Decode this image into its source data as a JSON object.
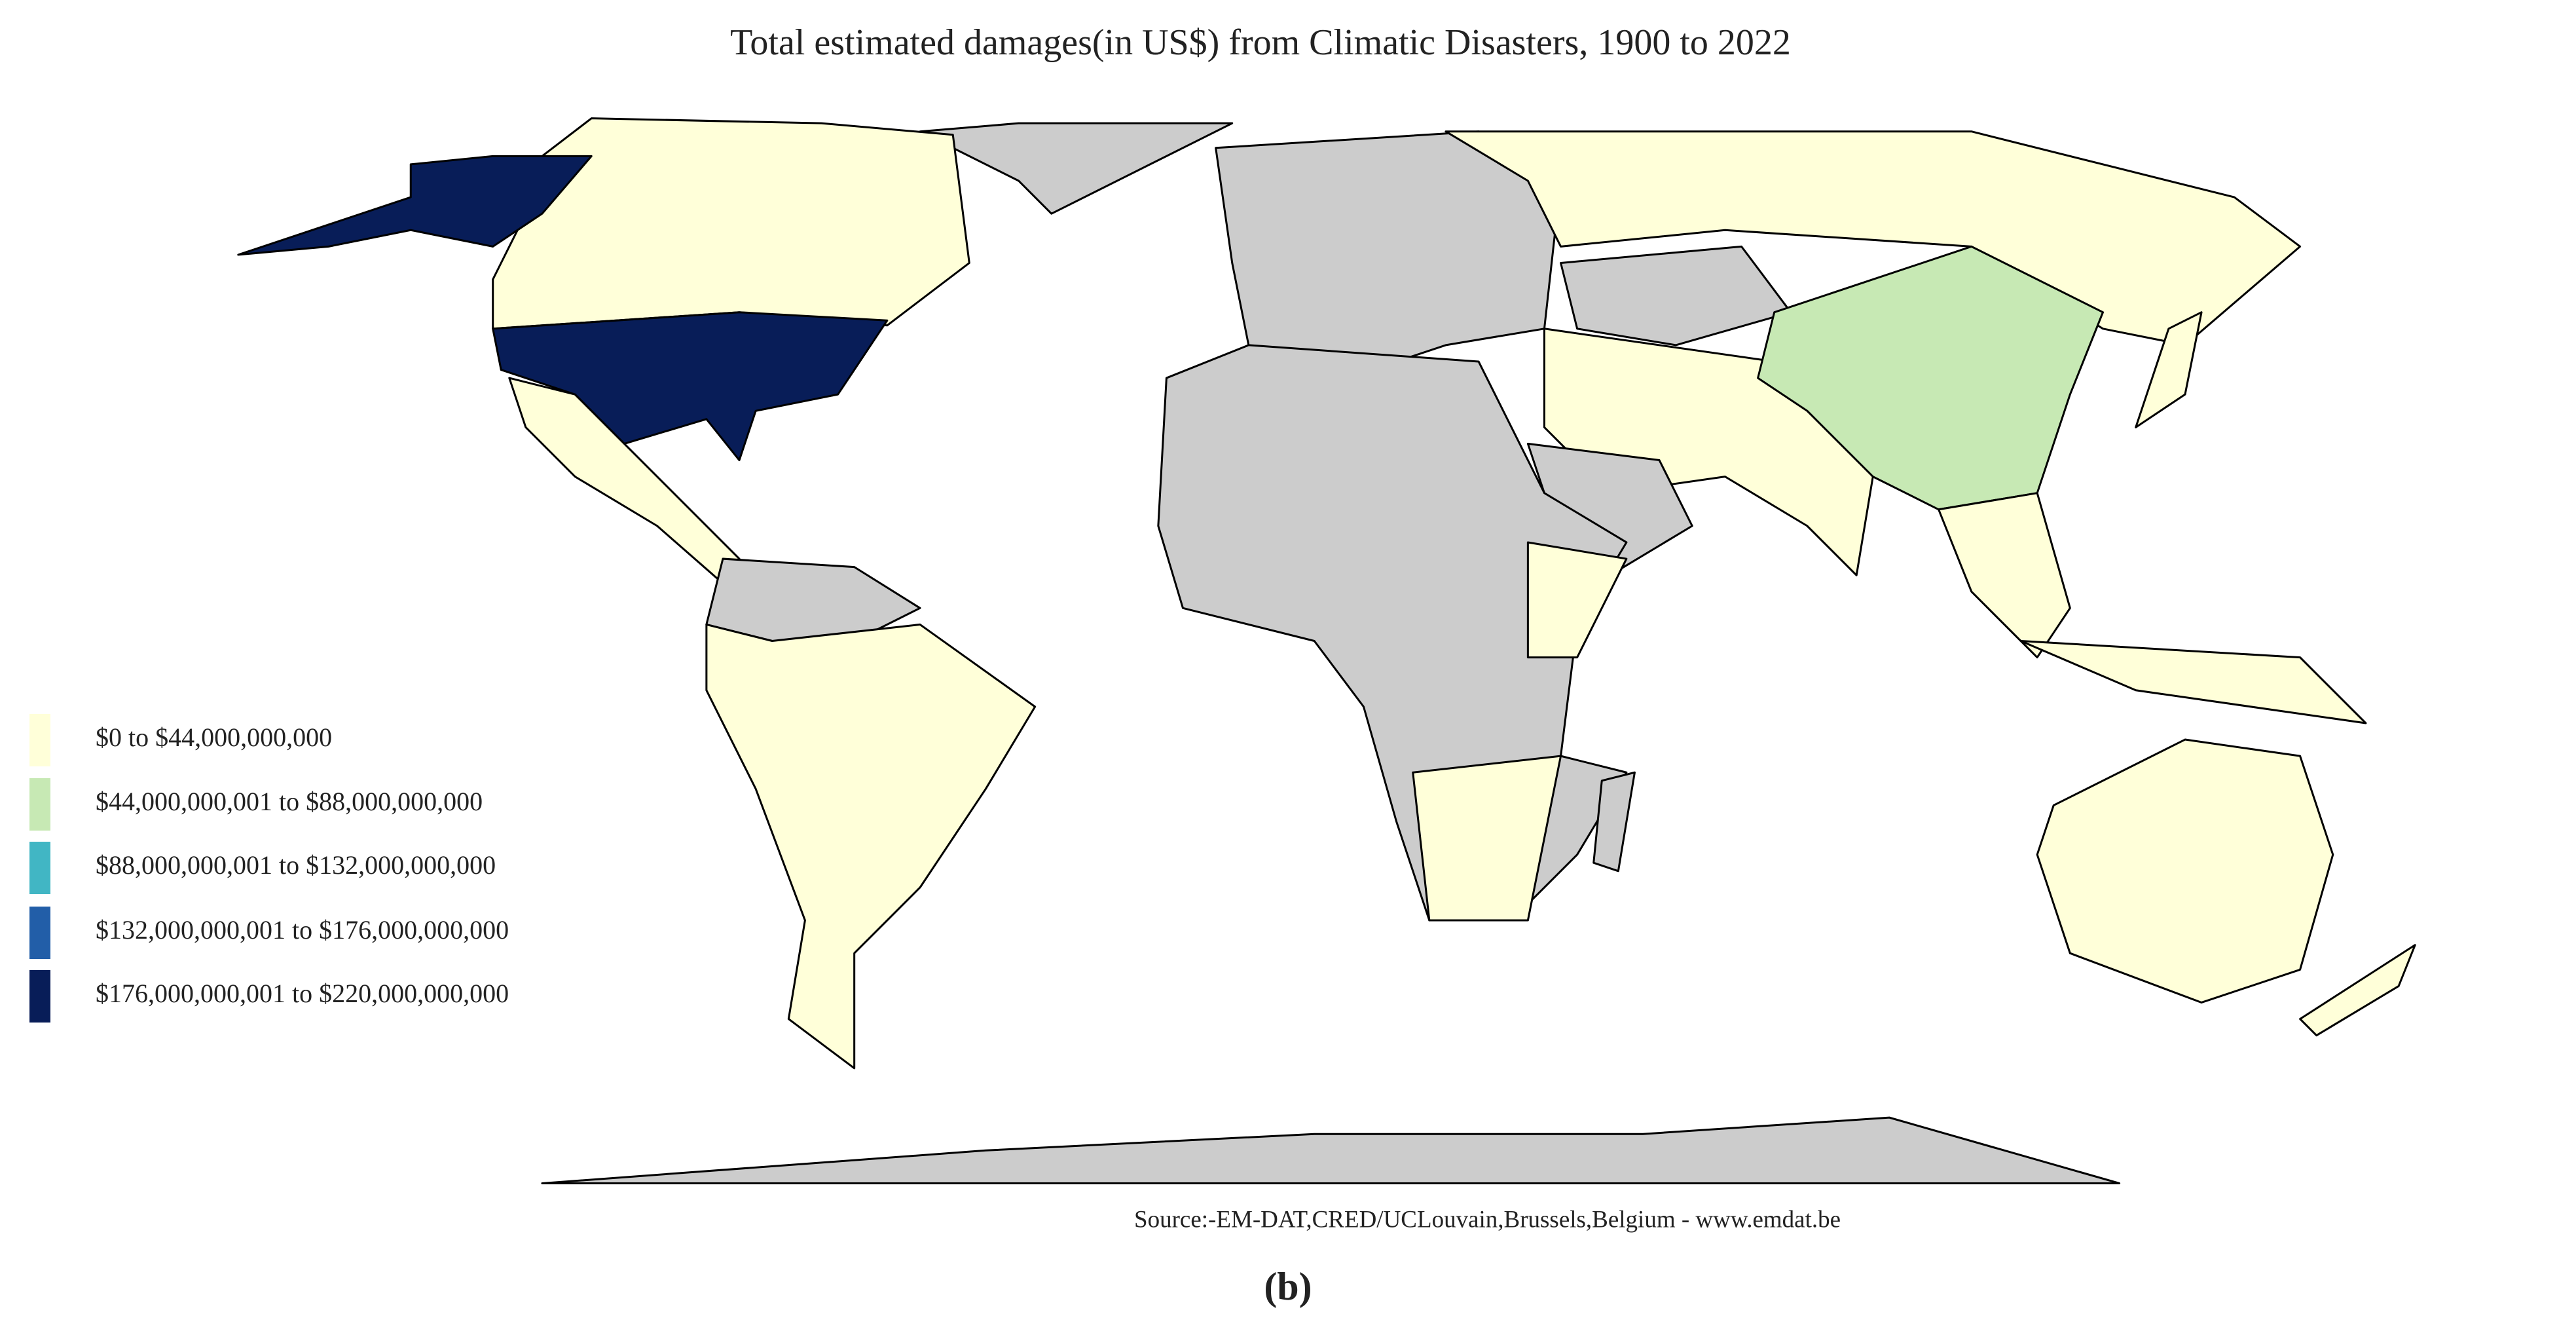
{
  "title": "Total estimated damages(in US$) from Climatic Disasters, 1900 to 2022",
  "legend": [
    {
      "label": "$0 to $44,000,000,000",
      "color": "#ffffd9"
    },
    {
      "label": "$44,000,000,001 to $88,000,000,000",
      "color": "#c7e9b4"
    },
    {
      "label": "$88,000,000,001 to $132,000,000,000",
      "color": "#41b6c4"
    },
    {
      "label": "$132,000,000,001 to $176,000,000,000",
      "color": "#225ea8"
    },
    {
      "label": "$176,000,000,001 to $220,000,000,000",
      "color": "#081d58"
    }
  ],
  "source": "Source:-EM-DAT,CRED/UCLouvain,Brussels,Belgium - www.emdat.be",
  "caption": "(b)"
}
